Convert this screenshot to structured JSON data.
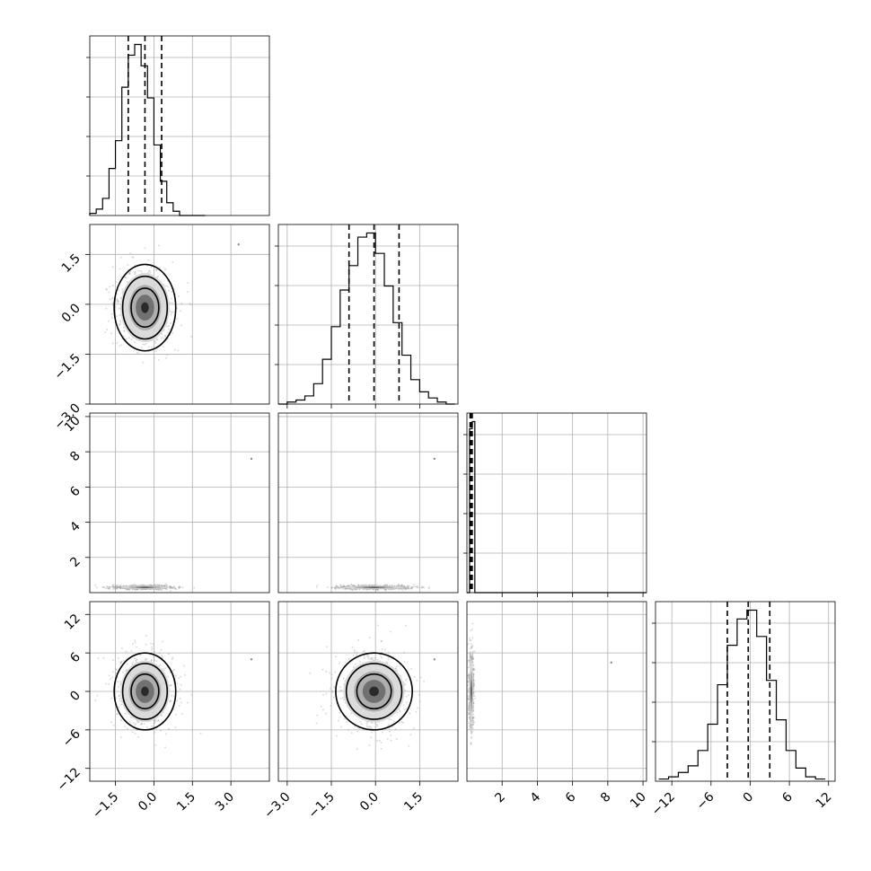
{
  "chart_data": {
    "type": "corner",
    "parameters": 4,
    "grid": true,
    "panels": [
      {
        "id": "hist-p0",
        "type": "histogram",
        "row": 0,
        "col": 0,
        "xlim": [
          -2.5,
          4.5
        ],
        "bin_edges": [
          -2.75,
          -2.5,
          -2.25,
          -2.0,
          -1.75,
          -1.5,
          -1.25,
          -1.0,
          -0.75,
          -0.5,
          -0.25,
          0.0,
          0.25,
          0.5,
          0.75,
          1.0,
          1.25,
          1.5,
          1.75,
          2.0
        ],
        "counts": [
          0,
          1,
          3,
          8,
          22,
          35,
          60,
          75,
          80,
          70,
          55,
          33,
          16,
          6,
          2,
          0,
          0,
          0,
          0
        ],
        "quantiles": [
          -1.0,
          -0.35,
          0.3
        ]
      },
      {
        "id": "scatter-p1-p0",
        "type": "density_contour",
        "row": 1,
        "col": 0,
        "x_param": 0,
        "y_param": 1,
        "xlim": [
          -2.5,
          4.5
        ],
        "ylim": [
          -3.0,
          2.4
        ],
        "center": [
          -0.35,
          -0.1
        ],
        "sigma": [
          0.6,
          0.65
        ],
        "outlier": [
          3.3,
          1.8
        ]
      },
      {
        "id": "hist-p1",
        "type": "histogram",
        "row": 1,
        "col": 1,
        "xlim": [
          -3.3,
          2.8
        ],
        "bin_edges": [
          -3.3,
          -3.0,
          -2.7,
          -2.4,
          -2.1,
          -1.8,
          -1.5,
          -1.2,
          -0.9,
          -0.6,
          -0.3,
          0.0,
          0.3,
          0.6,
          0.9,
          1.2,
          1.5,
          1.8,
          2.1,
          2.4,
          2.7
        ],
        "counts": [
          0,
          1,
          2,
          4,
          10,
          22,
          38,
          56,
          68,
          82,
          84,
          74,
          58,
          40,
          24,
          12,
          6,
          3,
          1,
          0
        ],
        "quantiles": [
          -0.9,
          -0.05,
          0.8
        ]
      },
      {
        "id": "scatter-p2-p0",
        "type": "density_band",
        "row": 2,
        "col": 0,
        "x_param": 0,
        "y_param": 2,
        "xlim": [
          -2.5,
          4.5
        ],
        "ylim": [
          0.0,
          10.2
        ],
        "center": [
          -0.35,
          0.3
        ],
        "sigma": [
          0.6,
          0.06
        ],
        "outlier": [
          3.8,
          7.6
        ]
      },
      {
        "id": "scatter-p2-p1",
        "type": "density_band",
        "row": 2,
        "col": 1,
        "x_param": 1,
        "y_param": 2,
        "xlim": [
          -3.3,
          2.8
        ],
        "ylim": [
          0.0,
          10.2
        ],
        "center": [
          -0.05,
          0.3
        ],
        "sigma": [
          0.65,
          0.06
        ],
        "outlier": [
          2.0,
          7.6
        ]
      },
      {
        "id": "hist-p2",
        "type": "histogram",
        "row": 2,
        "col": 2,
        "xlim": [
          0.0,
          10.2
        ],
        "bin_edges": [
          0.0,
          0.15,
          0.3,
          0.45,
          10.2
        ],
        "counts": [
          0,
          92,
          96,
          0
        ],
        "quantiles": [
          0.18,
          0.22,
          0.3
        ]
      },
      {
        "id": "scatter-p3-p0",
        "type": "density_contour",
        "row": 3,
        "col": 0,
        "x_param": 0,
        "y_param": 3,
        "xlim": [
          -2.5,
          4.5
        ],
        "ylim": [
          -14.0,
          14.0
        ],
        "center": [
          -0.35,
          0.0
        ],
        "sigma": [
          0.6,
          3.0
        ],
        "outlier": [
          3.8,
          5.0
        ]
      },
      {
        "id": "scatter-p3-p1",
        "type": "density_contour",
        "row": 3,
        "col": 1,
        "x_param": 1,
        "y_param": 3,
        "xlim": [
          -3.3,
          2.8
        ],
        "ylim": [
          -14.0,
          14.0
        ],
        "center": [
          -0.05,
          0.0
        ],
        "sigma": [
          0.65,
          3.0
        ],
        "outlier": [
          2.0,
          5.0
        ]
      },
      {
        "id": "scatter-p3-p2",
        "type": "density_strip",
        "row": 3,
        "col": 2,
        "x_param": 2,
        "y_param": 3,
        "xlim": [
          0.0,
          10.2
        ],
        "ylim": [
          -14.0,
          14.0
        ],
        "center": [
          0.25,
          0.0
        ],
        "sigma": [
          0.07,
          3.0
        ],
        "outlier": [
          8.2,
          4.5
        ]
      },
      {
        "id": "hist-p3",
        "type": "histogram",
        "row": 3,
        "col": 3,
        "xlim": [
          -14.5,
          13.0
        ],
        "bin_edges": [
          -14.0,
          -12.5,
          -11.0,
          -9.5,
          -8.0,
          -6.5,
          -5.0,
          -3.5,
          -2.0,
          -0.5,
          1.0,
          2.5,
          4.0,
          5.5,
          7.0,
          8.5,
          10.0,
          11.5
        ],
        "counts": [
          1,
          2,
          4,
          7,
          14,
          26,
          44,
          62,
          74,
          78,
          66,
          46,
          28,
          14,
          6,
          2,
          1
        ],
        "quantiles": [
          -3.5,
          -0.3,
          3.0
        ]
      }
    ],
    "axes": {
      "left_row1": {
        "ticks": [
          1.5,
          0.0,
          -1.5,
          -3.0
        ],
        "labels": [
          "1.5",
          "0.0",
          "−1.5",
          "−3.0"
        ]
      },
      "left_row2": {
        "ticks": [
          10,
          8,
          6,
          4,
          2
        ],
        "labels": [
          "10",
          "8",
          "6",
          "4",
          "2"
        ]
      },
      "left_row3": {
        "ticks": [
          12,
          6,
          0,
          -6,
          -12
        ],
        "labels": [
          "12",
          "6",
          "0",
          "−6",
          "−12"
        ]
      },
      "bottom_col0": {
        "ticks": [
          -1.5,
          0.0,
          1.5,
          3.0
        ],
        "labels": [
          "−1.5",
          "0.0",
          "1.5",
          "3.0"
        ]
      },
      "bottom_col1": {
        "ticks": [
          -3.0,
          -1.5,
          0.0,
          1.5
        ],
        "labels": [
          "−3.0",
          "−1.5",
          "0.0",
          "1.5"
        ]
      },
      "bottom_col2": {
        "ticks": [
          2,
          4,
          6,
          8,
          10
        ],
        "labels": [
          "2",
          "4",
          "6",
          "8",
          "10"
        ]
      },
      "bottom_col3": {
        "ticks": [
          -12,
          -6,
          0,
          6,
          12
        ],
        "labels": [
          "−12",
          "−6",
          "0",
          "6",
          "12"
        ]
      }
    }
  }
}
